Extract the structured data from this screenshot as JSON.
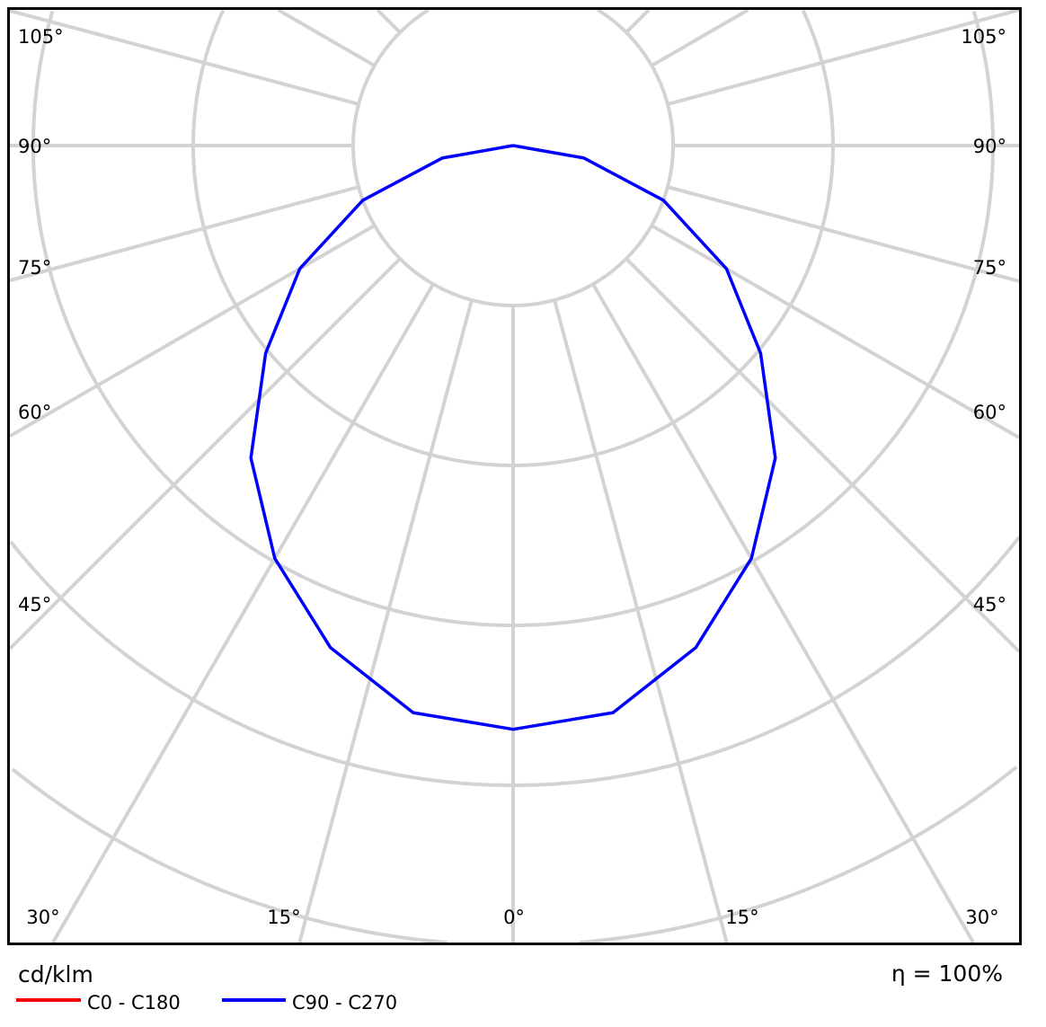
{
  "chart_data": {
    "type": "polar",
    "unit_label": "cd/klm",
    "efficiency_label": "η = 100%",
    "angle_labels_left": [
      "105°",
      "90°",
      "75°",
      "60°",
      "45°"
    ],
    "angle_labels_bottom": [
      "30°",
      "15°",
      "0°",
      "15°",
      "30°"
    ],
    "angle_labels_right": [
      "105°",
      "90°",
      "75°",
      "60°",
      "45°"
    ],
    "gamma": [
      0,
      10,
      20,
      30,
      40,
      50,
      60,
      70,
      80,
      90
    ],
    "series": [
      {
        "name": "C0 - C180",
        "color": "#ff0000",
        "values": [
          365,
          360,
          334,
          298,
          255,
          202,
          154,
          100,
          45,
          0
        ]
      },
      {
        "name": "C90 - C270",
        "color": "#0000ff",
        "values": [
          365,
          360,
          334,
          298,
          255,
          202,
          154,
          100,
          45,
          0
        ]
      }
    ],
    "ring_step": 100,
    "grid": true,
    "grid_color": "#d3d3d3",
    "legend_placement": "bottom-left"
  }
}
